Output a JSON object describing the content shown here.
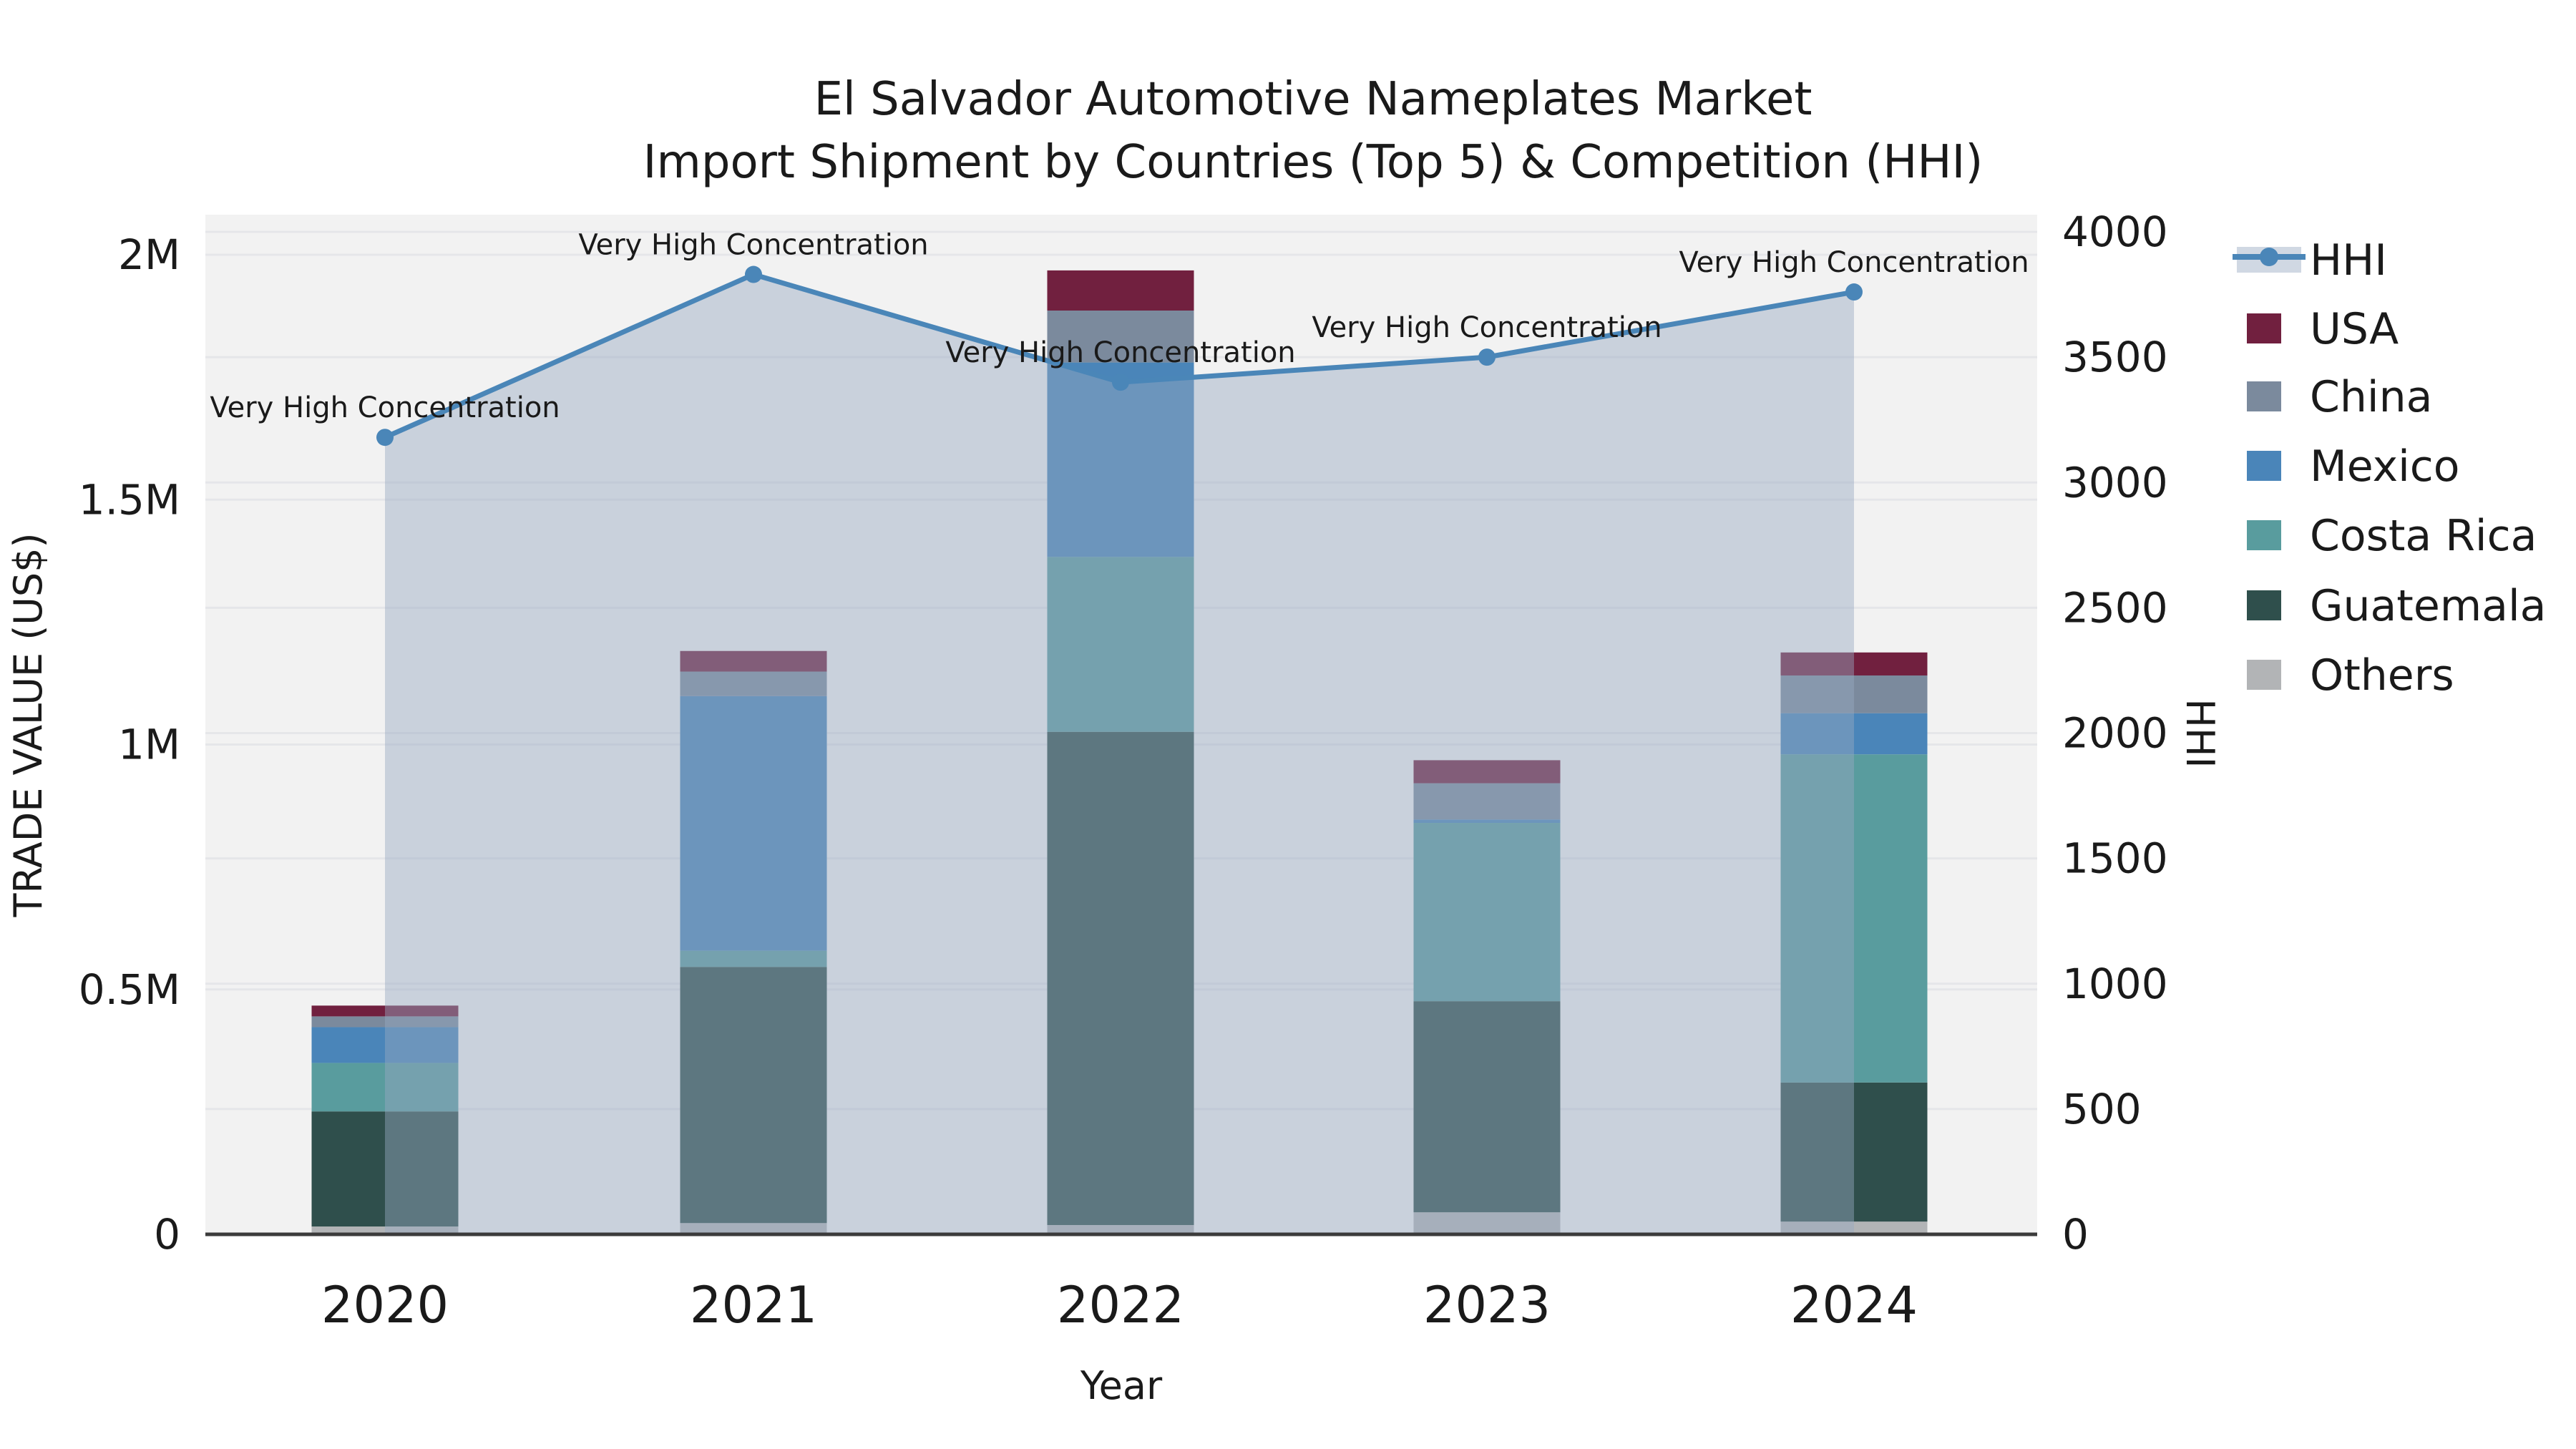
{
  "chart_data": {
    "type": "bar",
    "subtype": "stacked-bar-with-line",
    "title": "El Salvador Automotive Nameplates Market",
    "subtitle": "Import Shipment by Countries (Top 5) & Competition (HHI)",
    "xlabel": "Year",
    "ylabel_left": "TRADE VALUE (US$)",
    "ylabel_right": "HHI",
    "categories": [
      "2020",
      "2021",
      "2022",
      "2023",
      "2024"
    ],
    "stack_order": [
      "Others",
      "Guatemala",
      "Costa Rica",
      "Mexico",
      "China",
      "USA"
    ],
    "series": [
      {
        "name": "USA",
        "color": "#71203f",
        "values": [
          22000,
          42000,
          82000,
          47000,
          47000
        ]
      },
      {
        "name": "China",
        "color": "#7b8a9d",
        "values": [
          22000,
          50000,
          106000,
          74000,
          77000
        ]
      },
      {
        "name": "Mexico",
        "color": "#4a85b9",
        "values": [
          73000,
          520000,
          397000,
          7000,
          84000
        ]
      },
      {
        "name": "Costa Rica",
        "color": "#599c9e",
        "values": [
          99000,
          33000,
          357000,
          364000,
          670000
        ]
      },
      {
        "name": "Guatemala",
        "color": "#2f4f4c",
        "values": [
          235000,
          523000,
          1007000,
          431000,
          284000
        ]
      },
      {
        "name": "Others",
        "color": "#b2b4b6",
        "values": [
          16000,
          23000,
          19000,
          45000,
          26000
        ]
      }
    ],
    "line_series": {
      "name": "HHI",
      "color": "#4a86b8",
      "area_color": "rgba(151,168,192,0.45)",
      "values": [
        3180,
        3830,
        3400,
        3500,
        3760
      ]
    },
    "annotations": [
      "Very High Concentration",
      "Very High Concentration",
      "Very High Concentration",
      "Very High Concentration",
      "Very High Concentration"
    ],
    "left_axis": {
      "tick_labels": [
        "0",
        "0.5M",
        "1M",
        "1.5M",
        "2M"
      ],
      "tick_values": [
        0,
        500000,
        1000000,
        1500000,
        2000000
      ],
      "range": [
        0,
        2080000
      ]
    },
    "right_axis": {
      "tick_labels": [
        "0",
        "500",
        "1000",
        "1500",
        "2000",
        "2500",
        "3000",
        "3500",
        "4000"
      ],
      "tick_values": [
        0,
        500,
        1000,
        1500,
        2000,
        2500,
        3000,
        3500,
        4000
      ],
      "range": [
        0,
        4070
      ]
    },
    "legend": {
      "position": "right",
      "items": [
        "HHI",
        "USA",
        "China",
        "Mexico",
        "Costa Rica",
        "Guatemala",
        "Others"
      ]
    },
    "style": {
      "plot_bg": "#f2f2f2",
      "grid_color": "#e5e6e9",
      "spine_color": "#3b3b3b",
      "text_color": "#1a1a1a",
      "grid_on": true
    }
  }
}
